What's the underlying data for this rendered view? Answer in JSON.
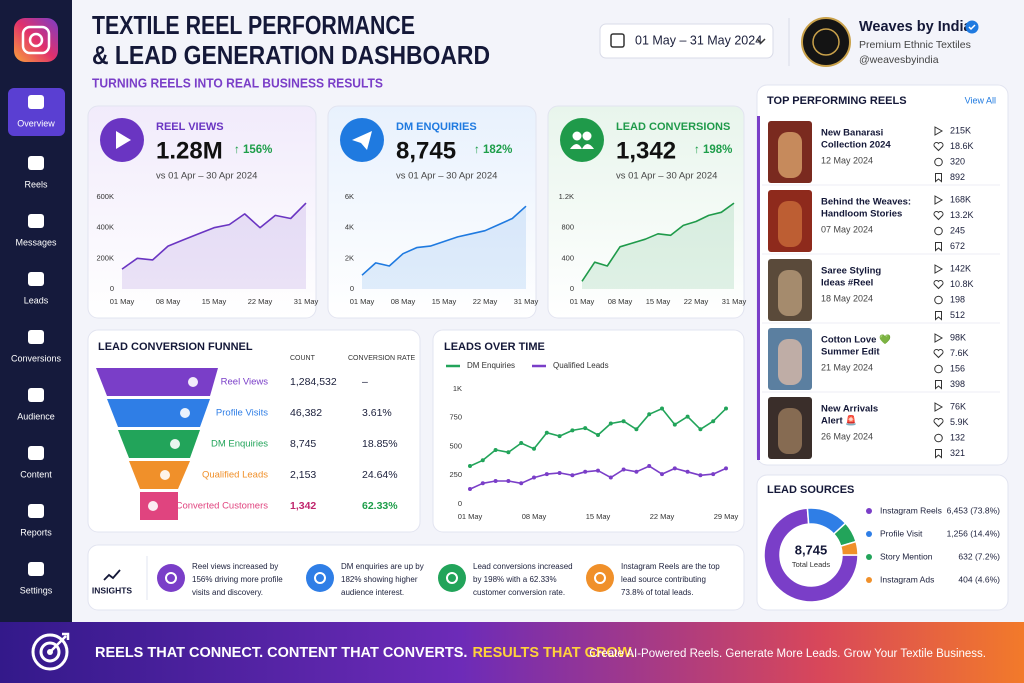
{
  "sidebar": {
    "items": [
      "Overview",
      "Reels",
      "Messages",
      "Leads",
      "Conversions",
      "Audience",
      "Content",
      "Reports",
      "Settings"
    ],
    "active": 0
  },
  "header": {
    "title_line1": "TEXTILE REEL PERFORMANCE",
    "title_line2": "& LEAD GENERATION DASHBOARD",
    "subtitle": "TURNING REELS INTO REAL BUSINESS RESULTS",
    "date_range": "01 May – 31 May 2024"
  },
  "brand": {
    "name": "Weaves by India",
    "tagline": "Premium Ethnic Textiles",
    "handle": "@weavesbyindia"
  },
  "kpis": [
    {
      "label": "REEL VIEWS",
      "value": "1.28M",
      "change": "↑ 156%",
      "compare": "vs 01 Apr – 30 Apr 2024",
      "color": "#6a35c2",
      "chart": {
        "type": "area",
        "categories": [
          "01 May",
          null,
          null,
          "08 May",
          null,
          null,
          "15 May",
          null,
          null,
          "22 May",
          null,
          null,
          "31 May"
        ],
        "values": [
          130000,
          200000,
          190000,
          280000,
          320000,
          360000,
          400000,
          420000,
          490000,
          400000,
          480000,
          460000,
          560000
        ],
        "ylim": [
          0,
          600000
        ],
        "yticks": [
          0,
          {
            "value": 200000,
            "label": "200K"
          },
          {
            "value": 400000,
            "label": "400K"
          },
          {
            "value": 600000,
            "label": "600K"
          }
        ]
      }
    },
    {
      "label": "DM ENQUIRIES",
      "value": "8,745",
      "change": "↑ 182%",
      "compare": "vs 01 Apr – 30 Apr 2024",
      "color": "#1f7ae0",
      "chart": {
        "type": "area",
        "categories": [
          "01 May",
          null,
          null,
          "08 May",
          null,
          null,
          "15 May",
          null,
          null,
          "22 May",
          null,
          null,
          "31 May"
        ],
        "values": [
          900,
          1700,
          1500,
          2300,
          2700,
          2800,
          3100,
          3400,
          3600,
          3800,
          4200,
          4600,
          5400
        ],
        "ylim": [
          0,
          6000
        ],
        "yticks": [
          0,
          {
            "value": 2000,
            "label": "2K"
          },
          {
            "value": 4000,
            "label": "4K"
          },
          {
            "value": 6000,
            "label": "6K"
          }
        ]
      }
    },
    {
      "label": "LEAD CONVERSIONS",
      "value": "1,342",
      "change": "↑ 198%",
      "compare": "vs 01 Apr – 30 Apr 2024",
      "color": "#1f9a4a",
      "chart": {
        "type": "area",
        "categories": [
          "01 May",
          null,
          null,
          "08 May",
          null,
          null,
          "15 May",
          null,
          null,
          "22 May",
          null,
          null,
          "31 May"
        ],
        "values": [
          100,
          350,
          300,
          550,
          600,
          650,
          720,
          700,
          830,
          880,
          960,
          1000,
          1120
        ],
        "ylim": [
          0,
          1200
        ],
        "yticks": [
          0,
          400,
          800,
          {
            "value": 1200,
            "label": "1.2K"
          }
        ]
      }
    }
  ],
  "funnel": {
    "title": "LEAD CONVERSION FUNNEL",
    "columns": [
      "COUNT",
      "CONVERSION RATE"
    ],
    "stages": [
      {
        "name": "Reel Views",
        "count": "1,284,532",
        "rate": "–",
        "color": "#7a3ec8"
      },
      {
        "name": "Profile Visits",
        "count": "46,382",
        "rate": "3.61%",
        "color": "#2f7ee6"
      },
      {
        "name": "DM Enquiries",
        "count": "8,745",
        "rate": "18.85%",
        "color": "#22a45a"
      },
      {
        "name": "Qualified Leads",
        "count": "2,153",
        "rate": "24.64%",
        "color": "#f0902a"
      },
      {
        "name": "Converted Customers",
        "count": "1,342",
        "rate": "62.33%",
        "color": "#e0447f"
      }
    ]
  },
  "leads_over_time": {
    "type": "line",
    "title": "LEADS OVER TIME",
    "categories": [
      "01 May",
      null,
      null,
      null,
      null,
      "08 May",
      null,
      null,
      null,
      null,
      "15 May",
      null,
      null,
      null,
      null,
      "22 May",
      null,
      null,
      null,
      null,
      "29 May"
    ],
    "series": [
      {
        "name": "DM Enquiries",
        "color": "#22a45a",
        "values": [
          330,
          380,
          470,
          450,
          530,
          480,
          620,
          590,
          640,
          660,
          600,
          700,
          720,
          650,
          780,
          830,
          690,
          760,
          650,
          720,
          830
        ]
      },
      {
        "name": "Qualified Leads",
        "color": "#7a3ec8",
        "values": [
          130,
          180,
          200,
          200,
          180,
          230,
          260,
          270,
          250,
          280,
          290,
          230,
          300,
          280,
          330,
          260,
          310,
          280,
          250,
          260,
          310
        ]
      }
    ],
    "ylim": [
      0,
      1000
    ],
    "yticks": [
      0,
      250,
      500,
      750,
      {
        "value": 1000,
        "label": "1K"
      }
    ]
  },
  "top_reels": {
    "title": "TOP PERFORMING REELS",
    "link": "View All",
    "reels": [
      {
        "title": [
          "New Banarasi",
          "Collection 2024"
        ],
        "date": "12 May 2024",
        "views": "215K",
        "likes": "18.6K",
        "comments": "320",
        "saves": "892"
      },
      {
        "title": [
          "Behind the Weaves:",
          "Handloom Stories"
        ],
        "date": "07 May 2024",
        "views": "168K",
        "likes": "13.2K",
        "comments": "245",
        "saves": "672"
      },
      {
        "title": [
          "Saree Styling",
          "Ideas #Reel"
        ],
        "date": "18 May 2024",
        "views": "142K",
        "likes": "10.8K",
        "comments": "198",
        "saves": "512"
      },
      {
        "title": [
          "Cotton Love 💚",
          "Summer Edit"
        ],
        "date": "21 May 2024",
        "views": "98K",
        "likes": "7.6K",
        "comments": "156",
        "saves": "398"
      },
      {
        "title": [
          "New Arrivals",
          "Alert 🚨"
        ],
        "date": "26 May 2024",
        "views": "76K",
        "likes": "5.9K",
        "comments": "132",
        "saves": "321"
      }
    ]
  },
  "lead_sources": {
    "type": "donut",
    "title": "LEAD SOURCES",
    "total": "8,745",
    "total_label": "Total Leads",
    "sources": [
      {
        "name": "Instagram Reels",
        "value": 6453,
        "label": "6,453 (73.8%)",
        "color": "#7a3ec8"
      },
      {
        "name": "Profile Visit",
        "value": 1256,
        "label": "1,256 (14.4%)",
        "color": "#2f7ee6"
      },
      {
        "name": "Story Mention",
        "value": 632,
        "label": "632 (7.2%)",
        "color": "#22a45a"
      },
      {
        "name": "Instagram Ads",
        "value": 404,
        "label": "404 (4.6%)",
        "color": "#f0902a"
      }
    ]
  },
  "insights": {
    "label": "INSIGHTS",
    "items": [
      {
        "lines": [
          "Reel views increased by",
          "156% driving more profile",
          "visits and discovery."
        ],
        "color": "#7a3ec8"
      },
      {
        "lines": [
          "DM enquiries are up by",
          "182% showing higher",
          "audience interest."
        ],
        "color": "#2f7ee6"
      },
      {
        "lines": [
          "Lead conversions increased",
          "by 198% with a 62.33%",
          "customer conversion rate."
        ],
        "color": "#22a45a"
      },
      {
        "lines": [
          "Instagram Reels are the top",
          "lead source contributing",
          "73.8% of total leads."
        ],
        "color": "#f0902a"
      }
    ]
  },
  "footer": {
    "slogan": "REELS THAT CONNECT. CONTENT THAT CONVERTS.",
    "highlight": "RESULTS THAT GROW.",
    "tagline": "Create AI-Powered Reels. Generate More Leads. Grow Your Textile Business."
  }
}
